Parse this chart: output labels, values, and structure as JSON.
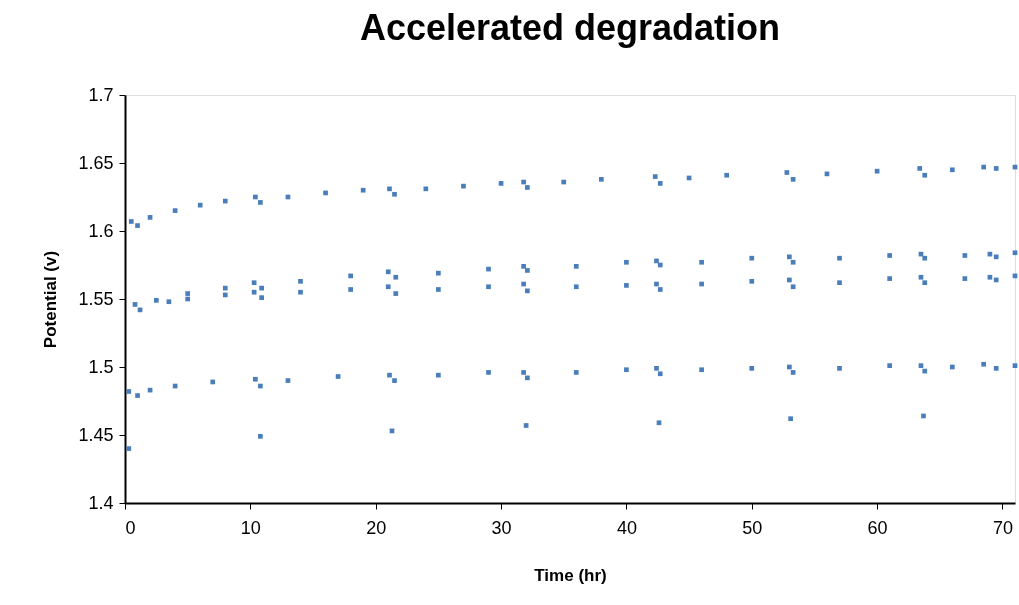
{
  "chart_data": {
    "type": "scatter",
    "title": "Accelerated degradation",
    "xlabel": "Time (hr)",
    "ylabel": "Potential (v)",
    "xlim": [
      0,
      71
    ],
    "xticks": [
      0,
      10,
      20,
      30,
      40,
      50,
      60,
      70
    ],
    "ylim": [
      1.4,
      1.7
    ],
    "yticks": [
      1.4,
      1.45,
      1.5,
      1.55,
      1.6,
      1.65,
      1.7
    ],
    "grid": false,
    "legend": false,
    "marker": "square",
    "series": [
      {
        "color": "#4a7ebb",
        "x": [
          0.5,
          1,
          2,
          4,
          6,
          8,
          10.4,
          10.8,
          13,
          16,
          19,
          21.1,
          21.5,
          24,
          27,
          30,
          31.8,
          32.1,
          35,
          38,
          42.3,
          42.7,
          45,
          48,
          52.8,
          53.3,
          56,
          60,
          63.4,
          63.8,
          66,
          68.5,
          69.5,
          71
        ],
        "values": [
          1.607,
          1.604,
          1.61,
          1.615,
          1.619,
          1.622,
          1.625,
          1.621,
          1.625,
          1.628,
          1.63,
          1.631,
          1.627,
          1.631,
          1.633,
          1.635,
          1.636,
          1.632,
          1.636,
          1.638,
          1.64,
          1.635,
          1.639,
          1.641,
          1.643,
          1.638,
          1.642,
          1.644,
          1.646,
          1.641,
          1.645,
          1.647,
          1.646,
          1.647
        ]
      },
      {
        "color": "#4a7ebb",
        "x": [
          0.8,
          2.5,
          5,
          8,
          10.3,
          10.9,
          14,
          18,
          21,
          21.6,
          25,
          29,
          31.8,
          32.1,
          36,
          40,
          42.4,
          42.7,
          46,
          50,
          53,
          53.3,
          57,
          61,
          63.5,
          63.8,
          67,
          69,
          69.5,
          71
        ],
        "values": [
          1.546,
          1.549,
          1.554,
          1.558,
          1.562,
          1.558,
          1.563,
          1.567,
          1.57,
          1.566,
          1.569,
          1.572,
          1.574,
          1.571,
          1.574,
          1.577,
          1.578,
          1.575,
          1.577,
          1.58,
          1.581,
          1.577,
          1.58,
          1.582,
          1.583,
          1.58,
          1.582,
          1.583,
          1.581,
          1.584
        ]
      },
      {
        "color": "#4a7ebb",
        "x": [
          1.2,
          3.5,
          5,
          8,
          10.3,
          10.9,
          14,
          18,
          21,
          21.6,
          25,
          29,
          31.8,
          32.1,
          36,
          40,
          42.4,
          42.7,
          46,
          50,
          53,
          53.3,
          57,
          61,
          63.5,
          63.8,
          67,
          69,
          69.5,
          71
        ],
        "values": [
          1.542,
          1.548,
          1.55,
          1.553,
          1.555,
          1.551,
          1.555,
          1.557,
          1.559,
          1.554,
          1.557,
          1.559,
          1.561,
          1.556,
          1.559,
          1.56,
          1.561,
          1.557,
          1.561,
          1.563,
          1.564,
          1.559,
          1.562,
          1.565,
          1.566,
          1.562,
          1.565,
          1.566,
          1.564,
          1.567
        ]
      },
      {
        "color": "#4a7ebb",
        "x": [
          0.3,
          1,
          2,
          4,
          7,
          10.4,
          10.8,
          13,
          17,
          21.1,
          21.5,
          25,
          29,
          31.8,
          32.1,
          36,
          40,
          42.4,
          42.7,
          46,
          50,
          53,
          53.3,
          57,
          61,
          63.5,
          63.8,
          66,
          68.5,
          69.5,
          71
        ],
        "values": [
          1.482,
          1.479,
          1.483,
          1.486,
          1.489,
          1.491,
          1.486,
          1.49,
          1.493,
          1.494,
          1.49,
          1.494,
          1.496,
          1.496,
          1.492,
          1.496,
          1.498,
          1.499,
          1.495,
          1.498,
          1.499,
          1.5,
          1.496,
          1.499,
          1.501,
          1.501,
          1.497,
          1.5,
          1.502,
          1.499,
          1.501
        ]
      },
      {
        "color": "#4a7ebb",
        "x": [
          0.3,
          10.8,
          21.3,
          32,
          42.6,
          53.1,
          63.7
        ],
        "values": [
          1.44,
          1.449,
          1.453,
          1.457,
          1.459,
          1.462,
          1.464
        ]
      }
    ]
  }
}
